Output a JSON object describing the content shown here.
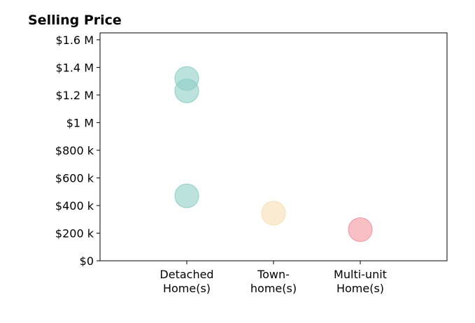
{
  "chart_data": {
    "type": "scatter",
    "title": "Selling Price",
    "xlabel": "",
    "ylabel": "",
    "categories": [
      [
        "Detached",
        "Home(s)"
      ],
      [
        "Town-",
        "home(s)"
      ],
      [
        "Multi-unit",
        "Home(s)"
      ]
    ],
    "xlim": [
      -1,
      3
    ],
    "ylim": [
      0,
      1650000
    ],
    "y_ticks": [
      0,
      200000,
      400000,
      600000,
      800000,
      1000000,
      1200000,
      1400000,
      1600000
    ],
    "y_tick_labels": [
      "$0",
      "$200 k",
      "$400 k",
      "$600 k",
      "$800 k",
      "$1 M",
      "$1.2 M",
      "$1.4 M",
      "$1.6 M"
    ],
    "grid": false,
    "points": [
      {
        "category": 0,
        "y": 1320000,
        "color": "#8ecfc4"
      },
      {
        "category": 0,
        "y": 1230000,
        "color": "#8ecfc4"
      },
      {
        "category": 0,
        "y": 470000,
        "color": "#8ecfc4"
      },
      {
        "category": 1,
        "y": 345000,
        "color": "#f6dfb0"
      },
      {
        "category": 2,
        "y": 225000,
        "color": "#f3959f"
      }
    ]
  }
}
